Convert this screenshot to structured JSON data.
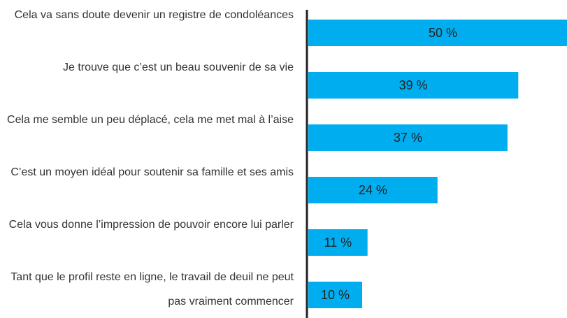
{
  "chart_data": {
    "type": "bar",
    "orientation": "horizontal",
    "categories": [
      "Cela va sans doute devenir un registre de condoléances",
      "Je trouve que c’est un beau souvenir de sa vie",
      "Cela me semble un peu déplacé, cela me met mal à l’aise",
      "C’est un moyen idéal pour soutenir sa famille et ses amis",
      "Cela vous donne l’impression de pouvoir encore lui parler",
      "Tant que le profil reste en ligne, le travail de deuil ne peut pas vraiment commencer"
    ],
    "values": [
      50,
      39,
      37,
      24,
      11,
      10
    ],
    "value_labels": [
      "50 %",
      "39 %",
      "37 %",
      "24 %",
      "11 %",
      "10 %"
    ],
    "color": "#00aeef"
  }
}
